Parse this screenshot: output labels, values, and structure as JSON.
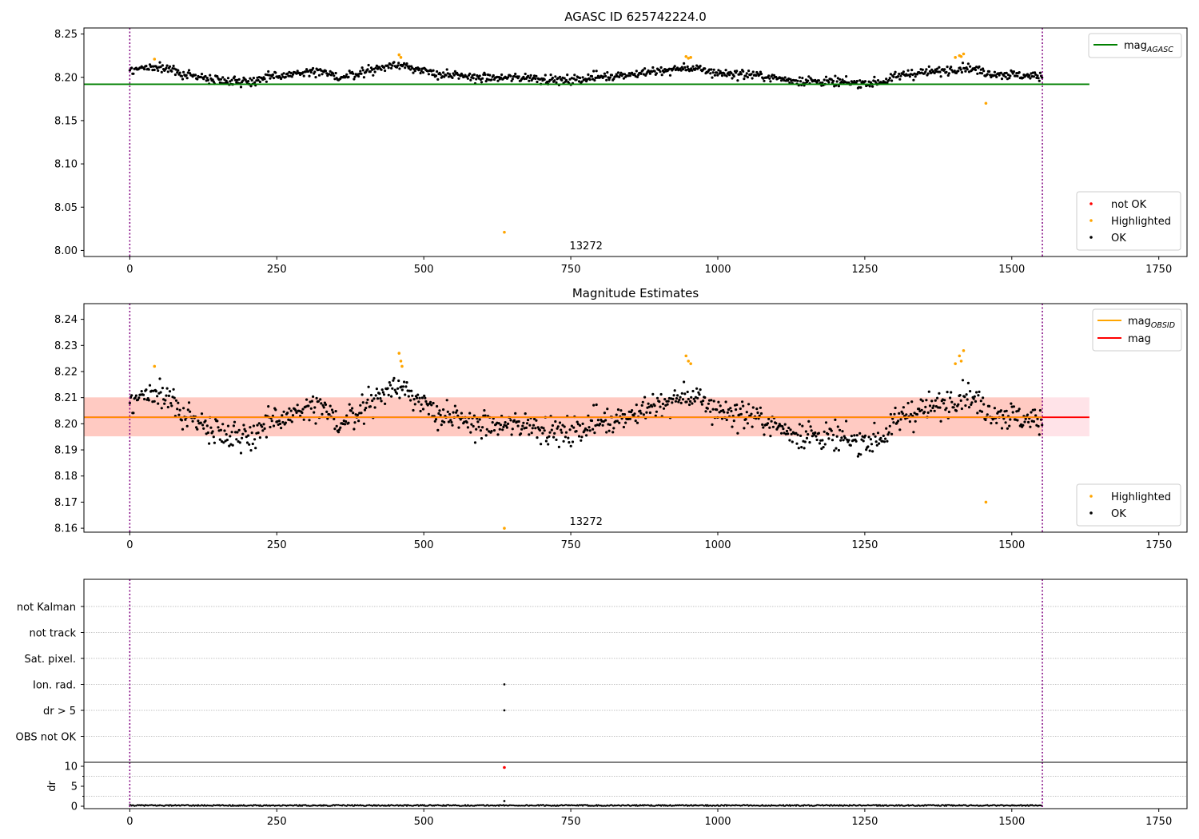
{
  "chart_data": [
    {
      "type": "scatter",
      "title": "AGASC ID 625742224.0",
      "annotation": "13272",
      "xlim": [
        -78,
        1798
      ],
      "ylim": [
        7.993,
        8.257
      ],
      "x_ticks": [
        0,
        250,
        500,
        750,
        1000,
        1250,
        1500,
        1750
      ],
      "y_ticks": [
        8.0,
        8.05,
        8.1,
        8.15,
        8.2,
        8.25
      ],
      "y_tick_labels": [
        "8.00",
        "8.05",
        "8.10",
        "8.15",
        "8.20",
        "8.25"
      ],
      "obs_boundaries": [
        0,
        1552
      ],
      "reference_line": {
        "name": "mag_AGASC",
        "legend_main": "mag",
        "legend_sub": "AGASC",
        "value": 8.192,
        "x_range": [
          -78,
          1632
        ],
        "color": "#008000"
      },
      "series": [
        {
          "name": "not OK",
          "color": "#ff0000",
          "points": []
        },
        {
          "name": "Highlighted",
          "color": "#ffa500",
          "points": [
            [
              42,
              8.221
            ],
            [
              458,
              8.226
            ],
            [
              461,
              8.223
            ],
            [
              946,
              8.224
            ],
            [
              950,
              8.222
            ],
            [
              954,
              8.223
            ],
            [
              1404,
              8.223
            ],
            [
              1411,
              8.225
            ],
            [
              1414,
              8.224
            ],
            [
              1418,
              8.227
            ],
            [
              1456,
              8.17
            ],
            [
              637,
              8.021
            ]
          ]
        },
        {
          "name": "OK",
          "color": "#000000",
          "trend": [
            [
              0,
              8.209
            ],
            [
              40,
              8.212
            ],
            [
              80,
              8.206
            ],
            [
              120,
              8.2
            ],
            [
              160,
              8.197
            ],
            [
              200,
              8.195
            ],
            [
              240,
              8.2
            ],
            [
              280,
              8.204
            ],
            [
              320,
              8.206
            ],
            [
              360,
              8.2
            ],
            [
              400,
              8.207
            ],
            [
              440,
              8.213
            ],
            [
              470,
              8.215
            ],
            [
              500,
              8.206
            ],
            [
              560,
              8.201
            ],
            [
              620,
              8.199
            ],
            [
              680,
              8.2
            ],
            [
              740,
              8.196
            ],
            [
              800,
              8.201
            ],
            [
              860,
              8.204
            ],
            [
              900,
              8.207
            ],
            [
              950,
              8.211
            ],
            [
              1000,
              8.205
            ],
            [
              1060,
              8.203
            ],
            [
              1120,
              8.197
            ],
            [
              1180,
              8.195
            ],
            [
              1240,
              8.193
            ],
            [
              1280,
              8.195
            ],
            [
              1320,
              8.204
            ],
            [
              1380,
              8.207
            ],
            [
              1420,
              8.212
            ],
            [
              1460,
              8.205
            ],
            [
              1520,
              8.202
            ],
            [
              1552,
              8.201
            ]
          ],
          "spread": 0.0045
        }
      ],
      "legends": {
        "line": [
          "mag_AGASC"
        ],
        "points": [
          "not OK",
          "Highlighted",
          "OK"
        ]
      }
    },
    {
      "type": "scatter",
      "title": "Magnitude Estimates",
      "annotation": "13272",
      "xlim": [
        -78,
        1798
      ],
      "ylim": [
        8.1585,
        8.246
      ],
      "x_ticks": [
        0,
        250,
        500,
        750,
        1000,
        1250,
        1500,
        1750
      ],
      "y_ticks": [
        8.16,
        8.17,
        8.18,
        8.19,
        8.2,
        8.21,
        8.22,
        8.23,
        8.24
      ],
      "y_tick_labels": [
        "8.16",
        "8.17",
        "8.18",
        "8.19",
        "8.20",
        "8.21",
        "8.22",
        "8.23",
        "8.24"
      ],
      "obs_boundaries": [
        0,
        1552
      ],
      "reference_lines": [
        {
          "name": "mag_OBSID",
          "legend_main": "mag",
          "legend_sub": "OBSID",
          "value": 8.2025,
          "x_range": [
            -78,
            1552
          ],
          "color": "#ffa500",
          "band": [
            8.1952,
            8.2101
          ],
          "band_color": "#ff7f50"
        },
        {
          "name": "mag",
          "legend_main": "mag",
          "value": 8.2025,
          "x_range": [
            -78,
            1632
          ],
          "color": "#ff0000",
          "band": [
            8.1952,
            8.2101
          ],
          "band_color": "#ffc0cb"
        }
      ],
      "series": [
        {
          "name": "Highlighted",
          "color": "#ffa500",
          "points": [
            [
              42,
              8.222
            ],
            [
              458,
              8.227
            ],
            [
              461,
              8.224
            ],
            [
              463,
              8.222
            ],
            [
              946,
              8.226
            ],
            [
              950,
              8.224
            ],
            [
              954,
              8.223
            ],
            [
              1404,
              8.223
            ],
            [
              1411,
              8.226
            ],
            [
              1414,
              8.224
            ],
            [
              1418,
              8.228
            ],
            [
              1456,
              8.17
            ],
            [
              637,
              8.16
            ]
          ]
        },
        {
          "name": "OK",
          "color": "#000000",
          "trend": [
            [
              0,
              8.209
            ],
            [
              40,
              8.212
            ],
            [
              80,
              8.206
            ],
            [
              120,
              8.2
            ],
            [
              160,
              8.197
            ],
            [
              200,
              8.195
            ],
            [
              240,
              8.2
            ],
            [
              280,
              8.204
            ],
            [
              320,
              8.206
            ],
            [
              360,
              8.2
            ],
            [
              400,
              8.207
            ],
            [
              440,
              8.213
            ],
            [
              470,
              8.215
            ],
            [
              500,
              8.206
            ],
            [
              560,
              8.201
            ],
            [
              620,
              8.199
            ],
            [
              680,
              8.2
            ],
            [
              740,
              8.196
            ],
            [
              800,
              8.201
            ],
            [
              860,
              8.204
            ],
            [
              900,
              8.207
            ],
            [
              950,
              8.211
            ],
            [
              1000,
              8.205
            ],
            [
              1060,
              8.203
            ],
            [
              1120,
              8.197
            ],
            [
              1180,
              8.195
            ],
            [
              1240,
              8.193
            ],
            [
              1280,
              8.195
            ],
            [
              1320,
              8.204
            ],
            [
              1380,
              8.207
            ],
            [
              1420,
              8.212
            ],
            [
              1460,
              8.205
            ],
            [
              1520,
              8.202
            ],
            [
              1552,
              8.201
            ]
          ],
          "spread": 0.0045
        }
      ],
      "legends": {
        "line": [
          "mag_OBSID",
          "mag"
        ],
        "points": [
          "Highlighted",
          "OK"
        ]
      }
    },
    {
      "type": "scatter",
      "title": "",
      "xlim": [
        -78,
        1798
      ],
      "categories": [
        "not Kalman",
        "not track",
        "Sat. pixel.",
        "Ion. rad.",
        "dr > 5",
        "OBS not OK"
      ],
      "flag_points": [
        {
          "category": "Ion. rad.",
          "x": 637
        },
        {
          "category": "dr > 5",
          "x": 637
        }
      ],
      "obs_boundaries": [
        0,
        1552
      ]
    },
    {
      "type": "scatter",
      "title": "",
      "ylabel": "dr",
      "xlim": [
        -78,
        1798
      ],
      "ylim": [
        -0.6,
        11
      ],
      "x_ticks": [
        0,
        250,
        500,
        750,
        1000,
        1250,
        1500,
        1750
      ],
      "x_tick_labels": [
        "0",
        "250",
        "500",
        "750",
        "1000",
        "1250",
        "1500",
        "1750"
      ],
      "y_ticks": [
        0,
        5,
        10
      ],
      "y_tick_labels": [
        "0",
        "5",
        "10"
      ],
      "obs_boundaries": [
        0,
        1552
      ],
      "series": [
        {
          "name": "dr",
          "color": "#000000",
          "baseline": 0.2,
          "spread": 0.15,
          "points": [
            [
              637,
              1.3
            ]
          ]
        },
        {
          "name": "dr flagged",
          "color": "#ff0000",
          "points": [
            [
              637,
              9.7
            ]
          ]
        }
      ]
    }
  ]
}
